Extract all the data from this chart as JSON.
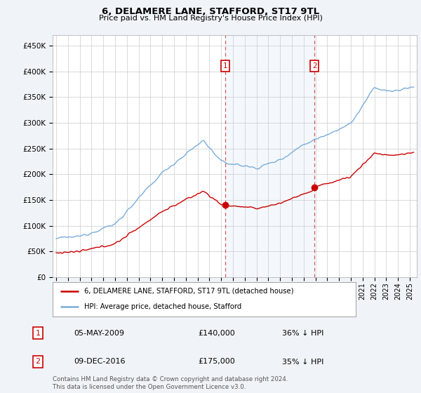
{
  "title": "6, DELAMERE LANE, STAFFORD, ST17 9TL",
  "subtitle": "Price paid vs. HM Land Registry's House Price Index (HPI)",
  "ylabel_ticks": [
    "£0",
    "£50K",
    "£100K",
    "£150K",
    "£200K",
    "£250K",
    "£300K",
    "£350K",
    "£400K",
    "£450K"
  ],
  "ytick_values": [
    0,
    50000,
    100000,
    150000,
    200000,
    250000,
    300000,
    350000,
    400000,
    450000
  ],
  "ylim": [
    0,
    470000
  ],
  "sale1_date": 2009.35,
  "sale1_price": 140000,
  "sale1_label": "1",
  "sale2_date": 2016.92,
  "sale2_price": 175000,
  "sale2_label": "2",
  "hpi_color": "#7aaddb",
  "sale_color": "#cc0000",
  "legend_sale_label": "6, DELAMERE LANE, STAFFORD, ST17 9TL (detached house)",
  "legend_hpi_label": "HPI: Average price, detached house, Stafford",
  "table_rows": [
    {
      "num": "1",
      "date": "05-MAY-2009",
      "price": "£140,000",
      "hpi": "36% ↓ HPI"
    },
    {
      "num": "2",
      "date": "09-DEC-2016",
      "price": "£175,000",
      "hpi": "35% ↓ HPI"
    }
  ],
  "footnote": "Contains HM Land Registry data © Crown copyright and database right 2024.\nThis data is licensed under the Open Government Licence v3.0.",
  "background_color": "#f0f4f8",
  "plot_bg_color": "#ffffff",
  "grid_color": "#cccccc"
}
